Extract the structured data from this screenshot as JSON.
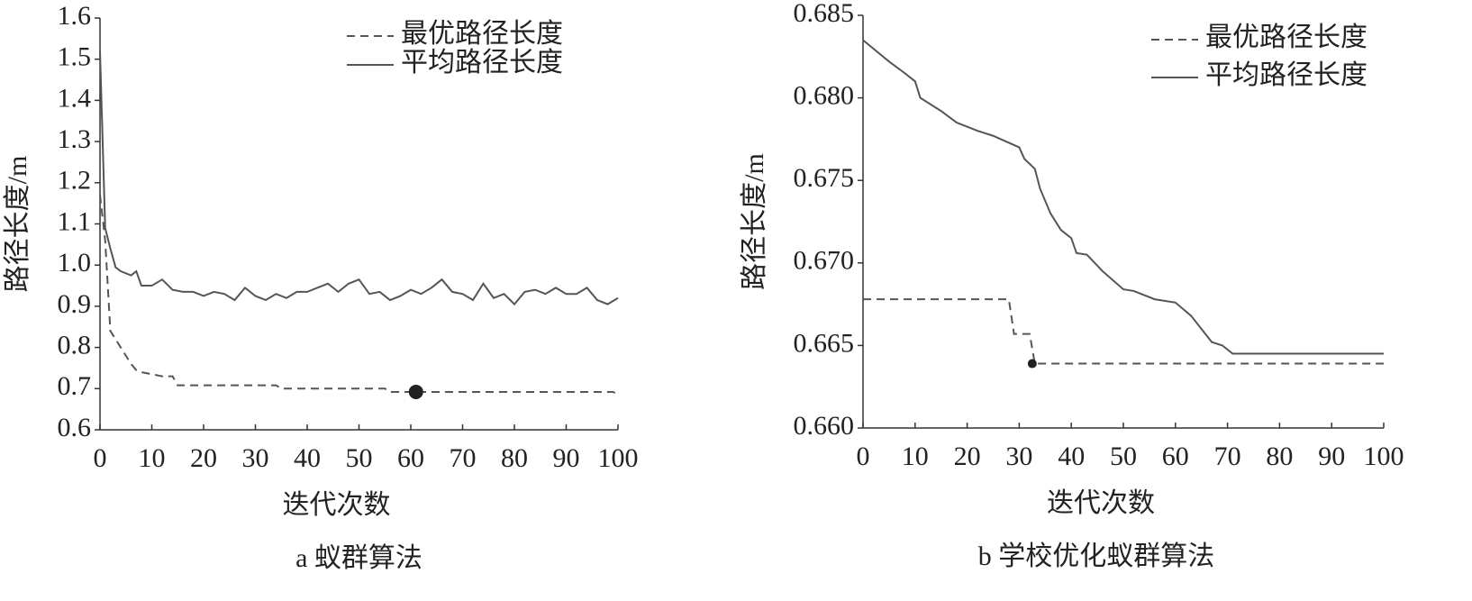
{
  "chart_data": [
    {
      "type": "line",
      "caption": "a 蚁群算法",
      "xlabel": "迭代次数",
      "ylabel": "路径长度/m",
      "xlim": [
        0,
        100
      ],
      "xticks": [
        0,
        10,
        20,
        30,
        40,
        50,
        60,
        70,
        80,
        90,
        100
      ],
      "ylim": [
        0.6,
        1.6
      ],
      "yticks": [
        0.6,
        0.7,
        0.8,
        0.9,
        {
          "value": 1.0,
          "label": "1.0"
        },
        1.1,
        1.2,
        1.3,
        1.4,
        1.5,
        1.6
      ],
      "legend": "upper right",
      "series": [
        {
          "name": "最优路径长度",
          "color": "#555555",
          "dash": true,
          "x": [
            0,
            1,
            2,
            3,
            4,
            5,
            6,
            7,
            8,
            10,
            12,
            14,
            15,
            20,
            34,
            35,
            55,
            56,
            99,
            100
          ],
          "values": [
            1.17,
            1.06,
            0.84,
            0.82,
            0.8,
            0.78,
            0.76,
            0.745,
            0.74,
            0.735,
            0.73,
            0.73,
            0.708,
            0.708,
            0.708,
            0.7,
            0.7,
            0.692,
            0.692,
            0.687
          ]
        },
        {
          "name": "平均路径长度",
          "color": "#555555",
          "dash": false,
          "x": [
            0,
            1,
            2,
            3,
            4,
            5,
            6,
            7,
            8,
            9,
            10,
            12,
            14,
            16,
            18,
            20,
            22,
            24,
            26,
            28,
            30,
            32,
            34,
            36,
            38,
            40,
            42,
            44,
            46,
            48,
            50,
            52,
            54,
            56,
            58,
            60,
            62,
            64,
            66,
            68,
            70,
            72,
            74,
            76,
            78,
            80,
            82,
            84,
            86,
            88,
            90,
            92,
            94,
            96,
            98,
            100
          ],
          "values": [
            1.52,
            1.09,
            1.04,
            0.995,
            0.985,
            0.98,
            0.975,
            0.985,
            0.95,
            0.95,
            0.95,
            0.965,
            0.94,
            0.935,
            0.935,
            0.925,
            0.935,
            0.93,
            0.915,
            0.945,
            0.925,
            0.915,
            0.93,
            0.92,
            0.935,
            0.935,
            0.945,
            0.955,
            0.935,
            0.955,
            0.965,
            0.93,
            0.935,
            0.915,
            0.925,
            0.94,
            0.93,
            0.945,
            0.965,
            0.935,
            0.93,
            0.915,
            0.955,
            0.92,
            0.93,
            0.905,
            0.935,
            0.94,
            0.93,
            0.945,
            0.93,
            0.93,
            0.945,
            0.915,
            0.905,
            0.92
          ]
        }
      ],
      "marker": {
        "x": 61,
        "y": 0.692
      }
    },
    {
      "type": "line",
      "caption": "b 学校优化蚁群算法",
      "xlabel": "迭代次数",
      "ylabel": "路径长度/m",
      "xlim": [
        0,
        100
      ],
      "xticks": [
        0,
        10,
        20,
        30,
        40,
        50,
        60,
        70,
        80,
        90,
        100
      ],
      "ylim": [
        0.66,
        0.685
      ],
      "yticks": [
        {
          "value": 0.66,
          "label": "0.660"
        },
        0.665,
        {
          "value": 0.67,
          "label": "0.670"
        },
        0.675,
        {
          "value": 0.68,
          "label": "0.680"
        },
        0.685
      ],
      "legend": "upper right",
      "series": [
        {
          "name": "最优路径长度",
          "color": "#555555",
          "dash": true,
          "x": [
            0,
            28,
            29,
            32,
            33,
            100
          ],
          "values": [
            0.6678,
            0.6678,
            0.6657,
            0.6657,
            0.6639,
            0.6639
          ]
        },
        {
          "name": "平均路径长度",
          "color": "#555555",
          "dash": false,
          "x": [
            0,
            5,
            8,
            10,
            11,
            15,
            18,
            22,
            25,
            30,
            31,
            33,
            34,
            36,
            38,
            40,
            41,
            43,
            46,
            50,
            52,
            56,
            60,
            63,
            65,
            67,
            69,
            71,
            100
          ],
          "values": [
            0.6835,
            0.6822,
            0.6815,
            0.681,
            0.68,
            0.6792,
            0.6785,
            0.678,
            0.6777,
            0.677,
            0.6763,
            0.6757,
            0.6745,
            0.673,
            0.672,
            0.6715,
            0.6706,
            0.6705,
            0.6695,
            0.6684,
            0.6683,
            0.6678,
            0.6676,
            0.6668,
            0.666,
            0.6652,
            0.665,
            0.6645,
            0.6645
          ]
        }
      ],
      "marker": {
        "x": 32.5,
        "y": 0.6639
      }
    }
  ]
}
